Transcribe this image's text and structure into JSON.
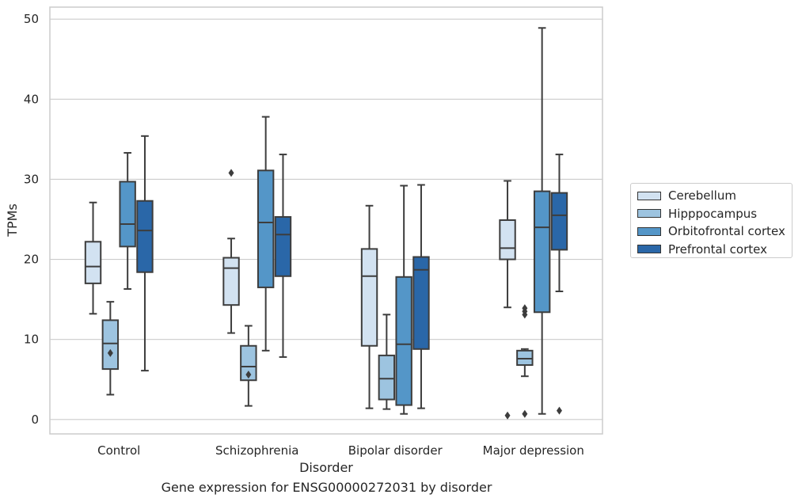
{
  "caption": "Gene expression for ENSG00000272031 by disorder",
  "chart_data": {
    "type": "box",
    "xlabel": "Disorder",
    "ylabel": "TPMs",
    "ylim": [
      -1.8,
      51.5
    ],
    "yticks": [
      0,
      10,
      20,
      30,
      40,
      50
    ],
    "grid": "horizontal",
    "legend_position": "right",
    "categories": [
      "Control",
      "Schizophrenia",
      "Bipolar disorder",
      "Major depression"
    ],
    "series": [
      {
        "name": "Cerebellum",
        "color": "#d2e2f1",
        "boxes": [
          {
            "whisker_low": 13.2,
            "q1": 17.0,
            "median": 19.1,
            "q3": 22.2,
            "whisker_high": 27.1,
            "outliers": []
          },
          {
            "whisker_low": 10.8,
            "q1": 14.3,
            "median": 18.9,
            "q3": 20.2,
            "whisker_high": 22.6,
            "outliers": [
              30.8
            ]
          },
          {
            "whisker_low": 1.4,
            "q1": 9.2,
            "median": 17.9,
            "q3": 21.3,
            "whisker_high": 26.7,
            "outliers": []
          },
          {
            "whisker_low": 14.0,
            "q1": 20.0,
            "median": 21.4,
            "q3": 24.9,
            "whisker_high": 29.8,
            "outliers": [
              0.5
            ]
          }
        ]
      },
      {
        "name": "Hipppocampus",
        "color": "#9dc4e0",
        "boxes": [
          {
            "whisker_low": 3.1,
            "q1": 6.3,
            "median": 9.5,
            "q3": 12.4,
            "whisker_high": 14.7,
            "outliers": [
              8.3
            ]
          },
          {
            "whisker_low": 1.7,
            "q1": 4.9,
            "median": 6.6,
            "q3": 9.2,
            "whisker_high": 11.7,
            "outliers": [
              5.6
            ]
          },
          {
            "whisker_low": 1.3,
            "q1": 2.5,
            "median": 5.1,
            "q3": 8.0,
            "whisker_high": 13.1,
            "outliers": []
          },
          {
            "whisker_low": 5.4,
            "q1": 6.8,
            "median": 7.6,
            "q3": 8.6,
            "whisker_high": 8.8,
            "outliers": [
              0.7,
              13.1,
              13.5,
              13.9
            ]
          }
        ]
      },
      {
        "name": "Orbitofrontal cortex",
        "color": "#5496c8",
        "boxes": [
          {
            "whisker_low": 16.3,
            "q1": 21.6,
            "median": 24.4,
            "q3": 29.7,
            "whisker_high": 33.3,
            "outliers": []
          },
          {
            "whisker_low": 8.6,
            "q1": 16.5,
            "median": 24.6,
            "q3": 31.1,
            "whisker_high": 37.8,
            "outliers": []
          },
          {
            "whisker_low": 0.7,
            "q1": 1.8,
            "median": 9.4,
            "q3": 17.8,
            "whisker_high": 29.2,
            "outliers": []
          },
          {
            "whisker_low": 0.7,
            "q1": 13.4,
            "median": 24.0,
            "q3": 28.5,
            "whisker_high": 48.9,
            "outliers": []
          }
        ]
      },
      {
        "name": "Prefrontal cortex",
        "color": "#2a67a8",
        "boxes": [
          {
            "whisker_low": 6.1,
            "q1": 18.4,
            "median": 23.6,
            "q3": 27.3,
            "whisker_high": 35.4,
            "outliers": []
          },
          {
            "whisker_low": 7.8,
            "q1": 17.9,
            "median": 23.1,
            "q3": 25.3,
            "whisker_high": 33.1,
            "outliers": []
          },
          {
            "whisker_low": 1.4,
            "q1": 8.8,
            "median": 18.7,
            "q3": 20.3,
            "whisker_high": 29.3,
            "outliers": []
          },
          {
            "whisker_low": 16.0,
            "q1": 21.2,
            "median": 25.5,
            "q3": 28.3,
            "whisker_high": 33.1,
            "outliers": [
              1.1
            ]
          }
        ]
      }
    ]
  }
}
